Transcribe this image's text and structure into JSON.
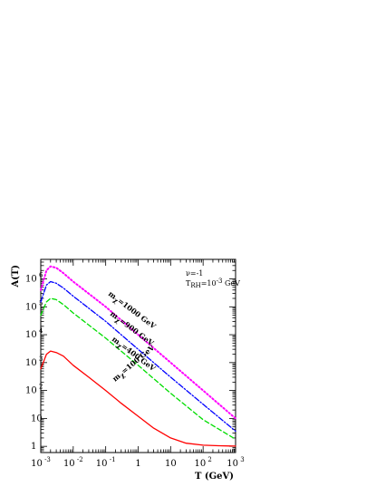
{
  "chart_data": {
    "type": "line",
    "title": "",
    "xlabel": "T (GeV)",
    "ylabel": "A(T)",
    "x_scale": "log",
    "y_scale": "log",
    "xlim": [
      0.001,
      1000
    ],
    "ylim": [
      0.6,
      5000000
    ],
    "x_ticks": [
      {
        "base": "10",
        "exp": "-3",
        "value": 0.001
      },
      {
        "base": "10",
        "exp": "-2",
        "value": 0.01
      },
      {
        "base": "10",
        "exp": "-1",
        "value": 0.1
      },
      {
        "base": "1",
        "exp": "",
        "value": 1
      },
      {
        "base": "10",
        "exp": "",
        "value": 10
      },
      {
        "base": "10",
        "exp": "2",
        "value": 100
      },
      {
        "base": "10",
        "exp": "3",
        "value": 1000
      }
    ],
    "y_ticks": [
      {
        "base": "1",
        "exp": "",
        "value": 1
      },
      {
        "base": "10",
        "exp": "",
        "value": 10
      },
      {
        "base": "10",
        "exp": "2",
        "value": 100
      },
      {
        "base": "10",
        "exp": "3",
        "value": 1000
      },
      {
        "base": "10",
        "exp": "4",
        "value": 10000
      },
      {
        "base": "10",
        "exp": "5",
        "value": 100000
      },
      {
        "base": "10",
        "exp": "6",
        "value": 1000000
      }
    ],
    "annotations": {
      "nu": "ν=-1",
      "t_prefix": "T",
      "t_sub": "RH",
      "t_mid": "=10",
      "t_sup": "-3",
      "t_suffix": " GeV"
    },
    "series": [
      {
        "label": "m=1000 GeV",
        "color": "#ff00ff",
        "dash": "dotted",
        "x": [
          0.001,
          0.0015,
          0.002,
          0.003,
          0.005,
          0.01,
          0.1,
          1,
          10,
          100,
          1000
        ],
        "y": [
          400000,
          2000000,
          2800000,
          2500000,
          1600000,
          800000,
          100000,
          10000,
          1000,
          100,
          10
        ]
      },
      {
        "label": "m=900 GeV",
        "color": "#0000ff",
        "dash": "dashdot",
        "x": [
          0.001,
          0.0015,
          0.002,
          0.003,
          0.005,
          0.01,
          0.1,
          1,
          10,
          100,
          1000
        ],
        "y": [
          150000,
          600000,
          800000,
          700000,
          470000,
          240000,
          30000,
          3000,
          300,
          32,
          3.5
        ]
      },
      {
        "label": "m=400 GeV",
        "color": "#00dd00",
        "dash": "dashed",
        "x": [
          0.001,
          0.0015,
          0.002,
          0.003,
          0.005,
          0.01,
          0.1,
          1,
          10,
          100,
          1000
        ],
        "y": [
          50000,
          150000,
          200000,
          180000,
          120000,
          60000,
          7500,
          800,
          80,
          9,
          1.8
        ]
      },
      {
        "label": "m=100 GeV",
        "color": "#ff0000",
        "dash": "solid",
        "x": [
          0.001,
          0.0015,
          0.002,
          0.003,
          0.005,
          0.01,
          0.03,
          0.1,
          0.3,
          1,
          3,
          10,
          30,
          100,
          300,
          1000
        ],
        "y": [
          600,
          2000,
          2600,
          2300,
          1700,
          800,
          300,
          100,
          35,
          12,
          4.5,
          2,
          1.3,
          1.1,
          1.05,
          1.02
        ]
      }
    ],
    "curve_labels": [
      {
        "pre": "m",
        "sub": "χ",
        "post": "=1000 GeV"
      },
      {
        "pre": "m",
        "sub": "χ",
        "post": "=900 GeV"
      },
      {
        "pre": "m",
        "sub": "χ",
        "post": "=400 GeV"
      },
      {
        "pre": "m",
        "sub": "χ",
        "post": "=100 GeV"
      }
    ]
  }
}
